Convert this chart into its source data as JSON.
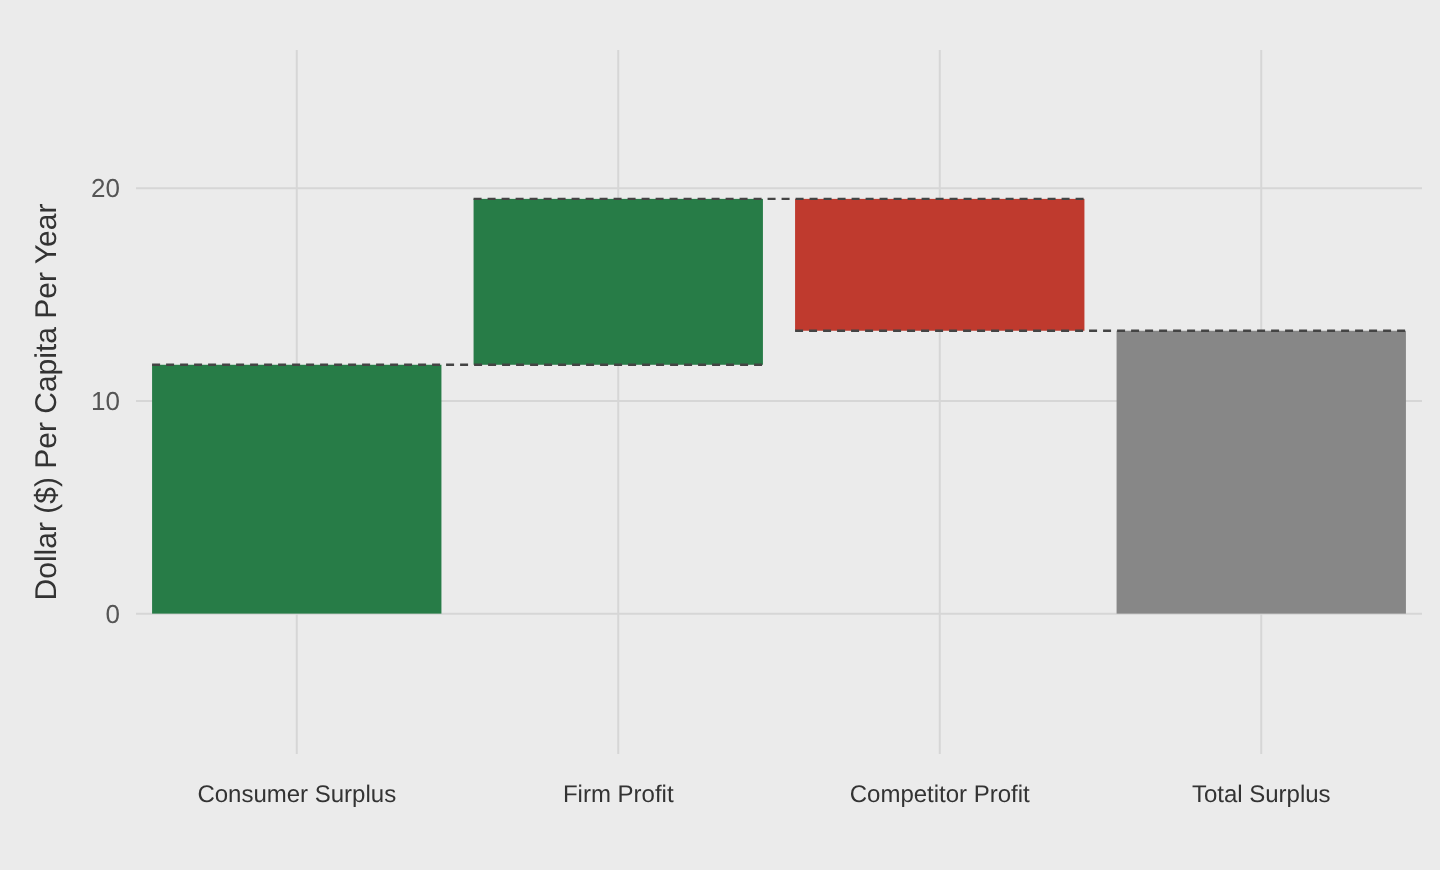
{
  "chart_data": {
    "type": "bar",
    "ylabel": "Dollar ($) Per Capita Per Year",
    "categories": [
      "Consumer Surplus",
      "Firm Profit",
      "Competitor Profit",
      "Total Surplus"
    ],
    "values": [
      11.7,
      7.8,
      -6.2,
      13.3
    ],
    "base": [
      0,
      11.7,
      19.5,
      0
    ],
    "colors": [
      "#277c47",
      "#277c47",
      "#bf3a2e",
      "#878787"
    ],
    "ref_lines": [
      {
        "axis": "y",
        "value": 11.7,
        "color": "#444444",
        "line_style": "dashed"
      },
      {
        "axis": "y",
        "value": 19.5,
        "color": "#444444",
        "line_style": "dashed"
      },
      {
        "axis": "y",
        "value": 13.3,
        "color": "#444444",
        "line_style": "dashed"
      }
    ],
    "ylim": [
      -6.6,
      26.5
    ],
    "yticks": [
      0,
      10,
      20
    ],
    "grid": true
  }
}
